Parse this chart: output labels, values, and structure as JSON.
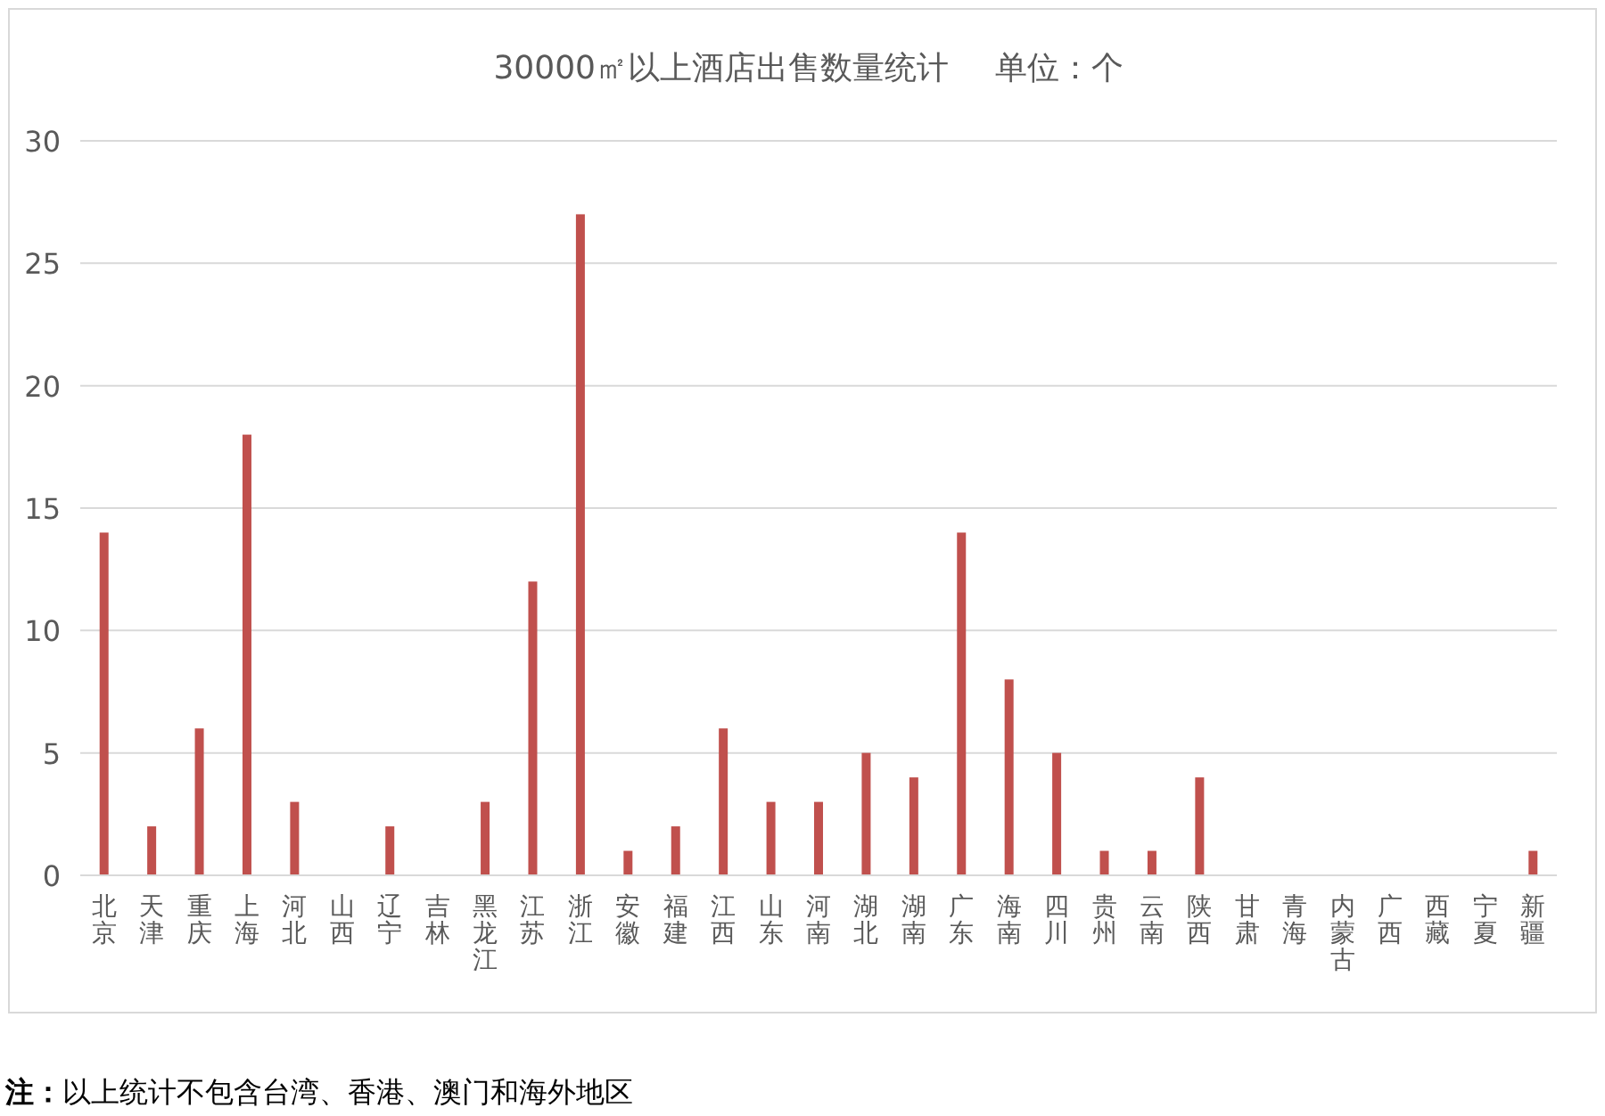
{
  "chart_data": {
    "type": "bar",
    "title": "30000㎡以上酒店出售数量统计",
    "subtitle": "单位：个",
    "categories": [
      "北京",
      "天津",
      "重庆",
      "上海",
      "河北",
      "山西",
      "辽宁",
      "吉林",
      "黑龙江",
      "江苏",
      "浙江",
      "安徽",
      "福建",
      "江西",
      "山东",
      "河南",
      "湖北",
      "湖南",
      "广东",
      "海南",
      "四川",
      "贵州",
      "云南",
      "陕西",
      "甘肃",
      "青海",
      "内蒙古",
      "广西",
      "西藏",
      "宁夏",
      "新疆"
    ],
    "values": [
      14,
      2,
      6,
      18,
      3,
      0,
      2,
      0,
      3,
      12,
      27,
      1,
      2,
      6,
      3,
      3,
      5,
      4,
      14,
      8,
      5,
      1,
      1,
      4,
      0,
      0,
      0,
      0,
      0,
      0,
      1
    ],
    "color": "#c0504d",
    "ylim": [
      0,
      30
    ],
    "yticks": [
      0,
      5,
      10,
      15,
      20,
      25,
      30
    ],
    "grid": "y",
    "annotations": [
      "**注：**以上统计不包含台湾、香港、澳门和海外地区"
    ]
  }
}
